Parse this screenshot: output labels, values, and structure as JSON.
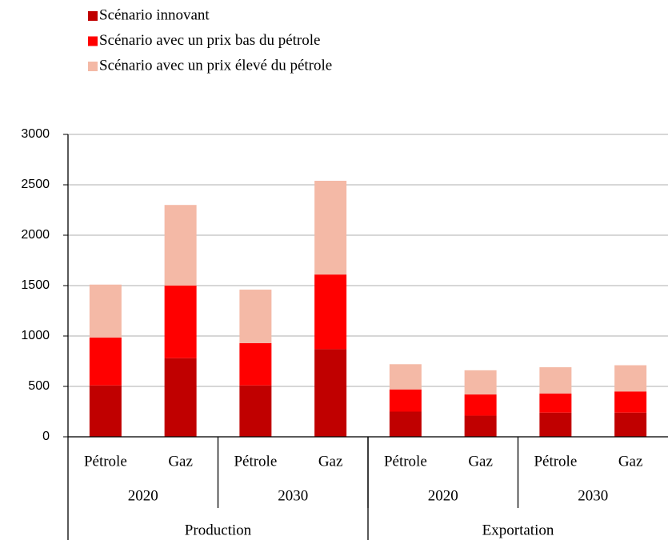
{
  "chart_data": {
    "type": "stacked_bar",
    "categories": [
      "Pétrole",
      "Gaz",
      "Pétrole",
      "Gaz",
      "Pétrole",
      "Gaz",
      "Pétrole",
      "Gaz"
    ],
    "years": [
      "2020",
      "2030",
      "2020",
      "2030"
    ],
    "sections": [
      "Production",
      "Exportation"
    ],
    "series": [
      {
        "name": "Scénario innovant",
        "color": "#c00000",
        "values": [
          510,
          780,
          510,
          870,
          250,
          210,
          240,
          240
        ]
      },
      {
        "name": "Scénario avec un prix bas du pétrole",
        "color": "#ff0000",
        "values": [
          475,
          720,
          420,
          740,
          220,
          210,
          190,
          210
        ]
      },
      {
        "name": "Scénario avec un prix élevé du pétrole",
        "color": "#f4b9a6",
        "values": [
          525,
          800,
          530,
          930,
          250,
          240,
          260,
          260
        ]
      }
    ],
    "ylim": [
      0,
      3000
    ],
    "yticks": [
      0,
      500,
      1000,
      1500,
      2000,
      2500,
      3000
    ],
    "grid": true
  }
}
